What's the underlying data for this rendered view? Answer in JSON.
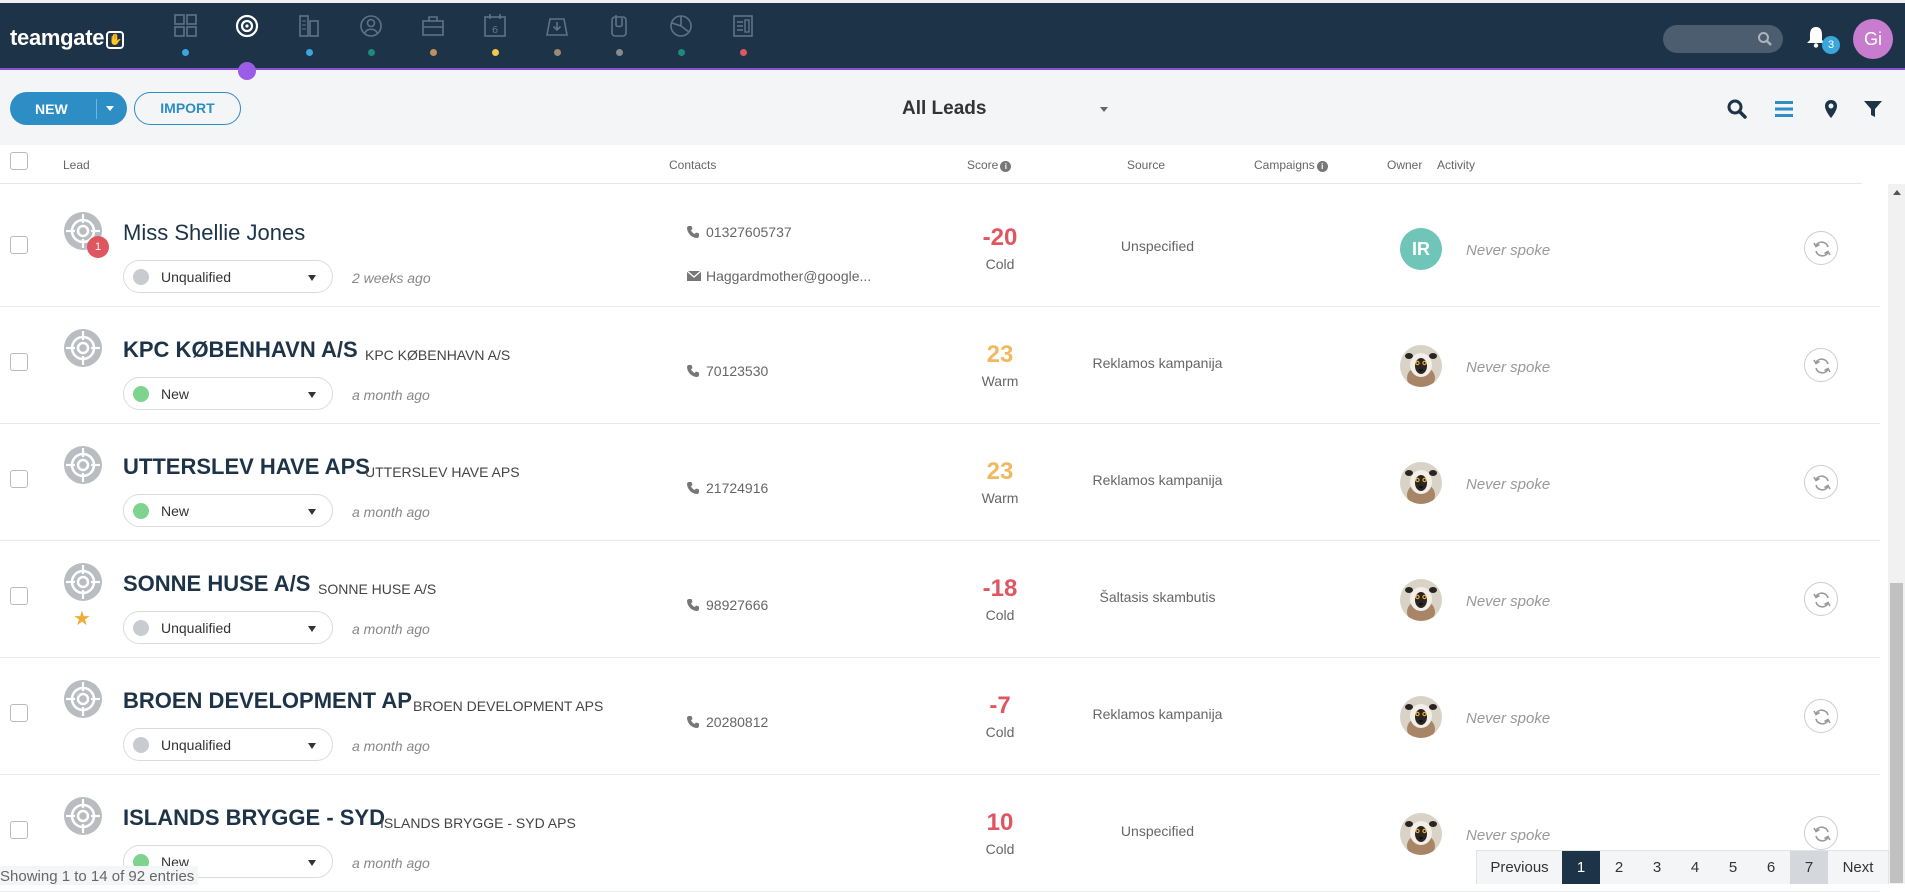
{
  "app": {
    "logo_text": "teamgate",
    "notifications_count": "3",
    "user_initials": "Gi"
  },
  "nav": {
    "icons": [
      {
        "name": "dashboard-icon",
        "dot": "#3aa6dc"
      },
      {
        "name": "leads-icon",
        "dot": "",
        "active": true
      },
      {
        "name": "companies-icon",
        "dot": "#3aa6dc"
      },
      {
        "name": "people-icon",
        "dot": "#1f8a7a"
      },
      {
        "name": "deals-icon",
        "dot": "#c09060"
      },
      {
        "name": "calendar-icon",
        "dot": "#f0c94a"
      },
      {
        "name": "inbox-icon",
        "dot": "#9a8a7a"
      },
      {
        "name": "documents-icon",
        "dot": "#8a8a8a"
      },
      {
        "name": "reports-icon",
        "dot": "#1f8a7a"
      },
      {
        "name": "forms-icon",
        "dot": "#e05660"
      }
    ],
    "accent": "#9b5de5"
  },
  "toolbar": {
    "new_label": "NEW",
    "import_label": "IMPORT",
    "view_label": "All Leads"
  },
  "table": {
    "headers": {
      "lead": "Lead",
      "contacts": "Contacts",
      "score": "Score",
      "source": "Source",
      "campaigns": "Campaigns",
      "owner": "Owner",
      "activity": "Activity"
    },
    "rows": [
      {
        "name": "Miss Shellie Jones",
        "company": "",
        "status": "Unqualified",
        "status_color": "#c8cbd0",
        "ago": "2 weeks ago",
        "phone": "01327605737",
        "email": "Haggardmother@google...",
        "score": "-20",
        "temp": "Cold",
        "score_color": "#e05660",
        "source": "Unspecified",
        "owner": "IR",
        "activity": "Never spoke",
        "notification": "1",
        "starred": false
      },
      {
        "name": "KPC KØBENHAVN A/S",
        "company": "KPC KØBENHAVN A/S",
        "status": "New",
        "status_color": "#7ed38f",
        "ago": "a month ago",
        "phone": "70123530",
        "email": "",
        "score": "23",
        "temp": "Warm",
        "score_color": "#f0b960",
        "source": "Reklamos kampanija",
        "owner": "",
        "activity": "Never spoke",
        "notification": "",
        "starred": false
      },
      {
        "name": "UTTERSLEV HAVE APS",
        "company": "UTTERSLEV HAVE APS",
        "status": "New",
        "status_color": "#7ed38f",
        "ago": "a month ago",
        "phone": "21724916",
        "email": "",
        "score": "23",
        "temp": "Warm",
        "score_color": "#f0b960",
        "source": "Reklamos kampanija",
        "owner": "",
        "activity": "Never spoke",
        "notification": "",
        "starred": false
      },
      {
        "name": "SONNE HUSE A/S",
        "company": "SONNE HUSE A/S",
        "status": "Unqualified",
        "status_color": "#c8cbd0",
        "ago": "a month ago",
        "phone": "98927666",
        "email": "",
        "score": "-18",
        "temp": "Cold",
        "score_color": "#e05660",
        "source": "Šaltasis skambutis",
        "owner": "",
        "activity": "Never spoke",
        "notification": "",
        "starred": true
      },
      {
        "name": "BROEN DEVELOPMENT AP",
        "company": "BROEN DEVELOPMENT APS",
        "status": "Unqualified",
        "status_color": "#c8cbd0",
        "ago": "a month ago",
        "phone": "20280812",
        "email": "",
        "score": "-7",
        "temp": "Cold",
        "score_color": "#e05660",
        "source": "Reklamos kampanija",
        "owner": "",
        "activity": "Never spoke",
        "notification": "",
        "starred": false
      },
      {
        "name": "ISLANDS BRYGGE - SYD",
        "company": "ISLANDS BRYGGE - SYD APS",
        "status": "New",
        "status_color": "#7ed38f",
        "ago": "a month ago",
        "phone": "",
        "email": "",
        "score": "10",
        "temp": "Cold",
        "score_color": "#e05660",
        "source": "Unspecified",
        "owner": "",
        "activity": "Never spoke",
        "notification": "",
        "starred": false
      }
    ]
  },
  "footer": {
    "entries_text": "Showing 1 to 14 of 92 entries",
    "previous_label": "Previous",
    "next_label": "Next",
    "pages": [
      "1",
      "2",
      "3",
      "4",
      "5",
      "6",
      "7"
    ],
    "current_page": "1"
  }
}
